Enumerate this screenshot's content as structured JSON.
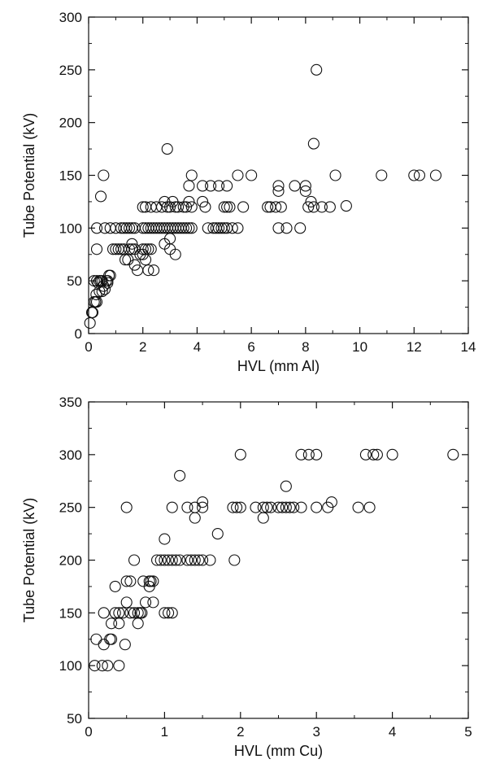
{
  "chart_data": [
    {
      "type": "scatter",
      "xlabel": "HVL (mm Al)",
      "ylabel": "Tube Potential (kV)",
      "xlim": [
        0,
        14
      ],
      "ylim": [
        0,
        300
      ],
      "xticks": [
        0,
        2,
        4,
        6,
        8,
        10,
        12,
        14
      ],
      "yticks": [
        0,
        50,
        100,
        150,
        200,
        250,
        300
      ],
      "marker": "open-circle",
      "color": "#111111",
      "points": [
        [
          0.05,
          10
        ],
        [
          0.12,
          20
        ],
        [
          0.15,
          20
        ],
        [
          0.2,
          30
        ],
        [
          0.25,
          30
        ],
        [
          0.3,
          30
        ],
        [
          0.28,
          37
        ],
        [
          0.4,
          40
        ],
        [
          0.2,
          50
        ],
        [
          0.3,
          50
        ],
        [
          0.35,
          48
        ],
        [
          0.4,
          50
        ],
        [
          0.45,
          50
        ],
        [
          0.5,
          50
        ],
        [
          0.55,
          45
        ],
        [
          0.6,
          42
        ],
        [
          0.5,
          40
        ],
        [
          0.65,
          50
        ],
        [
          0.7,
          50
        ],
        [
          0.75,
          55
        ],
        [
          0.8,
          55
        ],
        [
          0.7,
          48
        ],
        [
          0.45,
          130
        ],
        [
          0.55,
          150
        ],
        [
          0.3,
          80
        ],
        [
          0.3,
          100
        ],
        [
          0.6,
          100
        ],
        [
          0.8,
          100
        ],
        [
          1.0,
          100
        ],
        [
          1.2,
          100
        ],
        [
          1.3,
          100
        ],
        [
          1.4,
          100
        ],
        [
          1.5,
          100
        ],
        [
          1.6,
          100
        ],
        [
          1.7,
          100
        ],
        [
          0.9,
          80
        ],
        [
          1.0,
          80
        ],
        [
          1.1,
          80
        ],
        [
          1.2,
          80
        ],
        [
          1.3,
          80
        ],
        [
          1.35,
          70
        ],
        [
          1.45,
          70
        ],
        [
          1.5,
          80
        ],
        [
          1.6,
          80
        ],
        [
          1.7,
          80
        ],
        [
          1.6,
          85
        ],
        [
          1.7,
          65
        ],
        [
          1.8,
          60
        ],
        [
          1.9,
          75
        ],
        [
          2.0,
          75
        ],
        [
          2.0,
          80
        ],
        [
          2.1,
          80
        ],
        [
          2.1,
          70
        ],
        [
          2.2,
          80
        ],
        [
          2.3,
          80
        ],
        [
          2.2,
          60
        ],
        [
          2.4,
          60
        ],
        [
          2.0,
          100
        ],
        [
          2.1,
          100
        ],
        [
          2.2,
          100
        ],
        [
          2.3,
          100
        ],
        [
          2.4,
          100
        ],
        [
          2.5,
          100
        ],
        [
          2.6,
          100
        ],
        [
          2.7,
          100
        ],
        [
          2.8,
          100
        ],
        [
          2.9,
          100
        ],
        [
          3.0,
          100
        ],
        [
          3.1,
          100
        ],
        [
          3.2,
          100
        ],
        [
          3.3,
          100
        ],
        [
          3.4,
          100
        ],
        [
          3.5,
          100
        ],
        [
          3.6,
          100
        ],
        [
          3.7,
          100
        ],
        [
          3.8,
          100
        ],
        [
          2.0,
          120
        ],
        [
          2.1,
          120
        ],
        [
          2.3,
          120
        ],
        [
          2.5,
          120
        ],
        [
          2.7,
          120
        ],
        [
          2.8,
          125
        ],
        [
          2.9,
          120
        ],
        [
          3.0,
          120
        ],
        [
          3.1,
          125
        ],
        [
          3.2,
          120
        ],
        [
          3.3,
          120
        ],
        [
          3.5,
          120
        ],
        [
          3.6,
          120
        ],
        [
          3.7,
          125
        ],
        [
          3.8,
          120
        ],
        [
          2.8,
          85
        ],
        [
          3.0,
          80
        ],
        [
          3.0,
          90
        ],
        [
          3.2,
          75
        ],
        [
          2.9,
          175
        ],
        [
          3.7,
          140
        ],
        [
          3.8,
          150
        ],
        [
          4.2,
          140
        ],
        [
          4.2,
          125
        ],
        [
          4.3,
          120
        ],
        [
          4.5,
          140
        ],
        [
          4.8,
          140
        ],
        [
          5.1,
          140
        ],
        [
          5.5,
          150
        ],
        [
          6.0,
          150
        ],
        [
          4.4,
          100
        ],
        [
          4.6,
          100
        ],
        [
          4.7,
          100
        ],
        [
          4.8,
          100
        ],
        [
          4.9,
          100
        ],
        [
          5.0,
          100
        ],
        [
          5.1,
          100
        ],
        [
          5.3,
          100
        ],
        [
          5.5,
          100
        ],
        [
          5.0,
          120
        ],
        [
          5.1,
          120
        ],
        [
          5.2,
          120
        ],
        [
          5.7,
          120
        ],
        [
          6.6,
          120
        ],
        [
          6.7,
          120
        ],
        [
          6.9,
          120
        ],
        [
          7.0,
          135
        ],
        [
          7.0,
          140
        ],
        [
          7.1,
          120
        ],
        [
          7.0,
          100
        ],
        [
          7.3,
          100
        ],
        [
          7.6,
          140
        ],
        [
          7.8,
          100
        ],
        [
          8.0,
          135
        ],
        [
          8.0,
          140
        ],
        [
          8.1,
          120
        ],
        [
          8.2,
          125
        ],
        [
          8.3,
          120
        ],
        [
          8.6,
          120
        ],
        [
          8.9,
          120
        ],
        [
          9.1,
          150
        ],
        [
          9.5,
          121
        ],
        [
          8.4,
          250
        ],
        [
          8.3,
          180
        ],
        [
          10.8,
          150
        ],
        [
          12.0,
          150
        ],
        [
          12.2,
          150
        ],
        [
          12.8,
          150
        ]
      ]
    },
    {
      "type": "scatter",
      "xlabel": "HVL (mm Cu)",
      "ylabel": "Tube Potential (kV)",
      "xlim": [
        0,
        5
      ],
      "ylim": [
        50,
        350
      ],
      "xticks": [
        0,
        1,
        2,
        3,
        4,
        5
      ],
      "yticks": [
        50,
        100,
        150,
        200,
        250,
        300,
        350
      ],
      "marker": "open-circle",
      "color": "#111111",
      "points": [
        [
          0.08,
          100
        ],
        [
          0.1,
          125
        ],
        [
          0.18,
          100
        ],
        [
          0.2,
          120
        ],
        [
          0.2,
          150
        ],
        [
          0.25,
          100
        ],
        [
          0.28,
          125
        ],
        [
          0.3,
          125
        ],
        [
          0.3,
          140
        ],
        [
          0.35,
          150
        ],
        [
          0.35,
          175
        ],
        [
          0.4,
          150
        ],
        [
          0.4,
          140
        ],
        [
          0.4,
          100
        ],
        [
          0.45,
          150
        ],
        [
          0.48,
          120
        ],
        [
          0.5,
          160
        ],
        [
          0.5,
          180
        ],
        [
          0.55,
          180
        ],
        [
          0.55,
          150
        ],
        [
          0.6,
          150
        ],
        [
          0.65,
          150
        ],
        [
          0.65,
          140
        ],
        [
          0.68,
          150
        ],
        [
          0.7,
          150
        ],
        [
          0.72,
          180
        ],
        [
          0.75,
          160
        ],
        [
          0.8,
          180
        ],
        [
          0.8,
          175
        ],
        [
          0.82,
          180
        ],
        [
          0.85,
          180
        ],
        [
          0.85,
          160
        ],
        [
          0.6,
          200
        ],
        [
          0.9,
          200
        ],
        [
          0.95,
          200
        ],
        [
          1.0,
          200
        ],
        [
          1.05,
          200
        ],
        [
          1.0,
          150
        ],
        [
          1.05,
          150
        ],
        [
          1.1,
          150
        ],
        [
          1.0,
          220
        ],
        [
          1.1,
          200
        ],
        [
          1.15,
          200
        ],
        [
          1.2,
          200
        ],
        [
          1.3,
          200
        ],
        [
          1.35,
          200
        ],
        [
          1.4,
          200
        ],
        [
          1.45,
          200
        ],
        [
          1.5,
          200
        ],
        [
          1.6,
          200
        ],
        [
          1.92,
          200
        ],
        [
          0.5,
          250
        ],
        [
          1.1,
          250
        ],
        [
          1.2,
          280
        ],
        [
          1.3,
          250
        ],
        [
          1.4,
          250
        ],
        [
          1.4,
          240
        ],
        [
          1.5,
          250
        ],
        [
          1.5,
          255
        ],
        [
          1.7,
          225
        ],
        [
          1.9,
          250
        ],
        [
          1.95,
          250
        ],
        [
          2.0,
          250
        ],
        [
          2.0,
          300
        ],
        [
          2.2,
          250
        ],
        [
          2.3,
          250
        ],
        [
          2.3,
          240
        ],
        [
          2.35,
          250
        ],
        [
          2.4,
          250
        ],
        [
          2.5,
          250
        ],
        [
          2.55,
          250
        ],
        [
          2.6,
          250
        ],
        [
          2.6,
          270
        ],
        [
          2.65,
          250
        ],
        [
          2.7,
          250
        ],
        [
          2.8,
          250
        ],
        [
          2.8,
          300
        ],
        [
          2.9,
          300
        ],
        [
          3.0,
          300
        ],
        [
          3.0,
          250
        ],
        [
          3.15,
          250
        ],
        [
          3.2,
          255
        ],
        [
          3.55,
          250
        ],
        [
          3.65,
          300
        ],
        [
          3.7,
          250
        ],
        [
          3.75,
          300
        ],
        [
          3.8,
          300
        ],
        [
          4.0,
          300
        ],
        [
          4.8,
          300
        ]
      ]
    }
  ]
}
